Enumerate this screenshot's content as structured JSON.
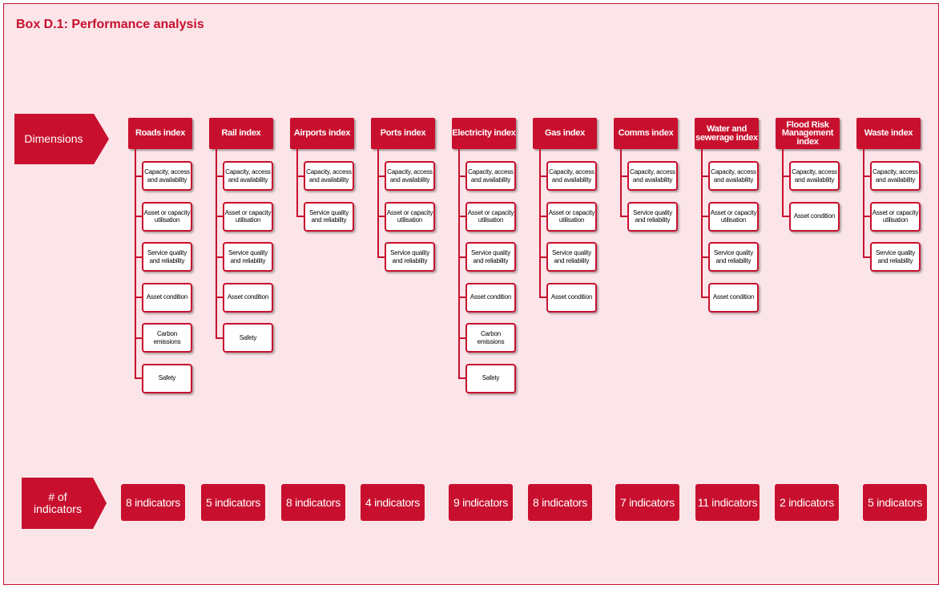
{
  "title": "Box D.1: Performance analysis",
  "dimensions_label": "Dimensions",
  "indicators_label": "# of\nindicators",
  "columns": [
    {
      "header": "Roads index",
      "subs": [
        "Capacity, access and availability",
        "Asset or capacity utilisation",
        "Service quality and reliability",
        "Asset condition",
        "Carbon emissions",
        "Safety"
      ],
      "count": "8 indicators"
    },
    {
      "header": "Rail index",
      "subs": [
        "Capacity, access and availability",
        "Asset or capacity utilisation",
        "Service quality and reliability",
        "Asset condition",
        "Safety"
      ],
      "count": "5 indicators"
    },
    {
      "header": "Airports index",
      "subs": [
        "Capacity, access and availability",
        "Service quality and reliability"
      ],
      "count": "8 indicators"
    },
    {
      "header": "Ports index",
      "subs": [
        "Capacity, access and availability",
        "Asset or capacity utilisation",
        "Service quality and reliability"
      ],
      "count": "4 indicators"
    },
    {
      "header": "Electricity index",
      "subs": [
        "Capacity, access and availability",
        "Asset or capacity utilisation",
        "Service quality and reliability",
        "Asset condition",
        "Carbon emissions",
        "Safety"
      ],
      "count": "9 indicators"
    },
    {
      "header": "Gas index",
      "subs": [
        "Capacity, access and availability",
        "Asset or capacity utilisation",
        "Service quality and reliability",
        "Asset condition"
      ],
      "count": "8 indicators"
    },
    {
      "header": "Comms index",
      "subs": [
        "Capacity, access and availability",
        "Service quality and reliability"
      ],
      "count": "7 indicators"
    },
    {
      "header": "Water and sewerage index",
      "subs": [
        "Capacity, access and availability",
        "Asset or capacity utilisation",
        "Service quality and reliability",
        "Asset condition"
      ],
      "count": "11 indicators"
    },
    {
      "header": "Flood Risk Management index",
      "subs": [
        "Capacity, access and availability",
        "Asset condition"
      ],
      "count": "2 indicators"
    },
    {
      "header": "Waste index",
      "subs": [
        "Capacity, access and availability",
        "Asset or capacity utilisation",
        "Service quality and reliability"
      ],
      "count": "5 indicators"
    }
  ],
  "colors": {
    "accent": "#c8102e",
    "background": "#fbe5e8"
  }
}
